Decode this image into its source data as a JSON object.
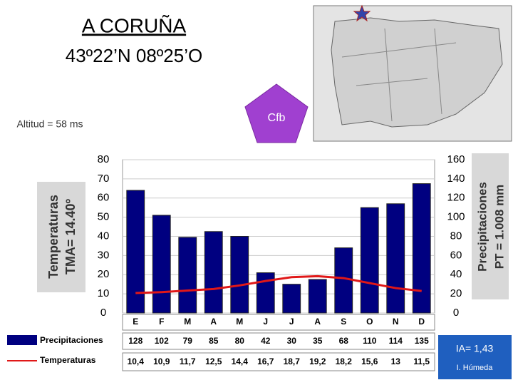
{
  "header": {
    "title": "A CORUÑA",
    "coords": "43º22’N 08º25’O",
    "altitude": "Altitud = 58 ms",
    "climate": "Cfb"
  },
  "aridity": {
    "index": "IA= 1,43",
    "label": "I. Húmeda"
  },
  "chart_data": {
    "type": "bar",
    "categories": [
      "E",
      "F",
      "M",
      "A",
      "M",
      "J",
      "J",
      "A",
      "S",
      "O",
      "N",
      "D"
    ],
    "y_label": [
      "Temperaturas",
      "TMA= 14.40º"
    ],
    "y2_label": [
      "Precipitaciones",
      "PT = 1.008 mm"
    ],
    "ylim": [
      0,
      80
    ],
    "yticks": [
      0,
      10,
      20,
      30,
      40,
      50,
      60,
      70,
      80
    ],
    "y2lim": [
      0,
      160
    ],
    "y2ticks": [
      0,
      20,
      40,
      60,
      80,
      100,
      120,
      140,
      160
    ],
    "grid": true,
    "series": [
      {
        "name": "Precipitaciones",
        "type": "bar",
        "axis": "y2",
        "color": "#000080",
        "values": [
          128,
          102,
          79,
          85,
          80,
          42,
          30,
          35,
          68,
          110,
          114,
          135
        ]
      },
      {
        "name": "Temperaturas",
        "type": "line",
        "color": "#e01818",
        "values": [
          10.4,
          10.9,
          11.7,
          12.5,
          14.4,
          16.7,
          18.7,
          19.2,
          18.2,
          15.6,
          13,
          11.5
        ],
        "value_labels": [
          "10,4",
          "10,9",
          "11,7",
          "12,5",
          "14,4",
          "16,7",
          "18,7",
          "19,2",
          "18,2",
          "15,6",
          "13",
          "11,5"
        ]
      }
    ]
  }
}
